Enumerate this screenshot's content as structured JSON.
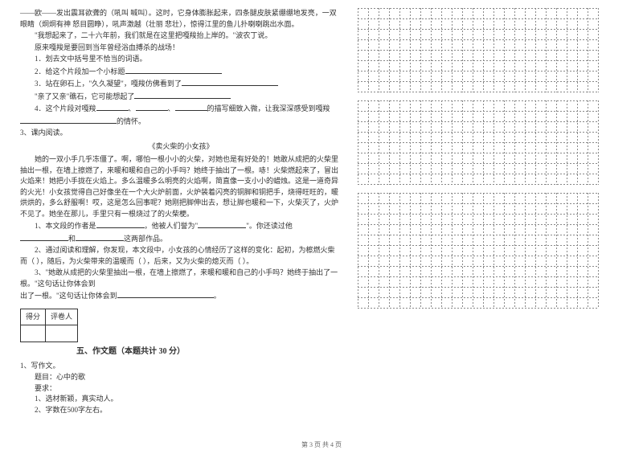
{
  "left": {
    "p1": "——欧——发出震耳欲聋的（吼叫  喊叫）。这时，它身体膨胀起来，四条腿皮肤紧绷绷地发亮，一双眼睛（炯炯有神  怒目圆睁），吼声激越（壮丽  悲壮），惊得江里的鱼儿扑喇喇跳出水面。",
    "p2": "\"我想起来了，二十六年前，我们就是在这里把嘎羧抬上岸的。\"波农丁说。",
    "p3": "原来嘎羧是要回到当年曾经浴血搏杀的战场！",
    "q1": "1．划去文中括号里不恰当的词语。",
    "q2": "2．给这个片段加一个小标题",
    "q3a": "3．站在卵石上，\"久久凝望\"，嘎羧仿佛看到了",
    "q3b": "\"亲了又亲\"礁石，它可能想起了",
    "q4a": "4．这个片段对嘎羧",
    "q4b": "、",
    "q4c": "、",
    "q4d": "的描写细致入微，让我深深感受到嘎羧",
    "q4e": "的情怀。",
    "item3": "3、课内阅读。",
    "story_title": "《卖火柴的小女孩》",
    "s1": "她的一双小手几乎冻僵了。啊，哪怕一根小小的火柴，对她也是有好处的！她敢从成把的火柴里抽出一根，在墙上擦燃了，来暖和暖和自己的小手吗？她终于抽出了一根。哧！火柴燃起来了，冒出火焰来！她把小手拢在火焰上。多么温暖多么明亮的火焰啊，简直像一支小小的蜡烛。这是一道奇异的火光！小女孩觉得自己好像坐在一个大火炉前面，火炉装着闪亮的铜脚和铜把手，烧得旺旺的，暖烘烘的，多么舒服啊！哎，这是怎么回事呢？她刚把脚伸出去，想让脚也暖和一下，火柴灭了，火炉不见了。她坐在那儿，手里只有一根烧过了的火柴梗。",
    "sq1a": "1、本文段的作者是",
    "sq1b": "，他被人们誉为\"",
    "sq1c": "\"。你还读过他",
    "sq1d": "和",
    "sq1e": "这两部作品。",
    "sq2": "2、通过阅读和理解，你发现，本文段中，小女孩的心情经历了这样的变化：起初，为檫燃火柴而（        ），随后，为火柴带来的温暖而（        ），后来，又为火柴的熄灭而（        ）。",
    "sq3a": "3、\"她敢从成把的火柴里抽出一根，在墙上擦燃了，来暖和暖和自己的小手吗？她终于抽出了一根。\"这句话让你体会到",
    "sq3b": "。",
    "score_left": "得分",
    "score_right": "评卷人",
    "section5": "五、作文题（本题共计 30 分）",
    "w1": "1、写作文。",
    "w2": "题目：心中的歌",
    "w3": "要求：",
    "w4": "1、选材新颖，真实动人。",
    "w5": "2、字数在500字左右。"
  },
  "footer": "第 3 页 共 4 页",
  "grid": {
    "rows": 4,
    "cols": 23,
    "cell": 13,
    "block_rows": 3,
    "stroke": "#888",
    "dash": "2,2"
  }
}
